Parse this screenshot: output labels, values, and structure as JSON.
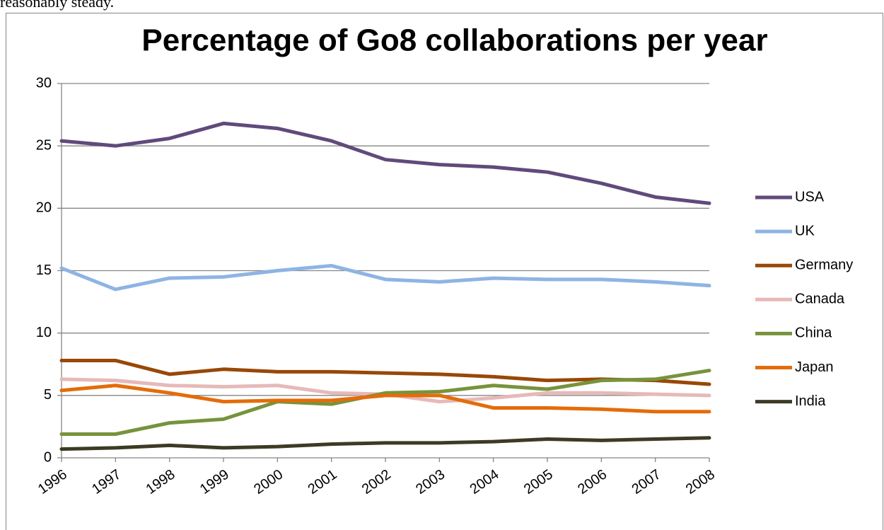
{
  "document": {
    "text": "reasonably steady."
  },
  "chart_data": {
    "type": "line",
    "title": "Percentage of Go8 collaborations per year",
    "categories": [
      "1996",
      "1997",
      "1998",
      "1999",
      "2000",
      "2001",
      "2002",
      "2003",
      "2004",
      "2005",
      "2006",
      "2007",
      "2008"
    ],
    "series": [
      {
        "name": "USA",
        "color": "#604a7b",
        "values": [
          25.4,
          25.0,
          25.6,
          26.8,
          26.4,
          25.4,
          23.9,
          23.5,
          23.3,
          22.9,
          22.0,
          20.9,
          20.4
        ]
      },
      {
        "name": "UK",
        "color": "#8eb4e3",
        "values": [
          15.2,
          13.5,
          14.4,
          14.5,
          15.0,
          15.4,
          14.3,
          14.1,
          14.4,
          14.3,
          14.3,
          14.1,
          13.8
        ]
      },
      {
        "name": "Germany",
        "color": "#984807",
        "values": [
          7.8,
          7.8,
          6.7,
          7.1,
          6.9,
          6.9,
          6.8,
          6.7,
          6.5,
          6.2,
          6.3,
          6.2,
          5.9
        ]
      },
      {
        "name": "Canada",
        "color": "#e6b9b8",
        "values": [
          6.3,
          6.2,
          5.8,
          5.7,
          5.8,
          5.2,
          5.1,
          4.5,
          4.8,
          5.2,
          5.2,
          5.1,
          5.0
        ]
      },
      {
        "name": "China",
        "color": "#77933c",
        "values": [
          1.9,
          1.9,
          2.8,
          3.1,
          4.5,
          4.3,
          5.2,
          5.3,
          5.8,
          5.5,
          6.2,
          6.3,
          7.0
        ]
      },
      {
        "name": "Japan",
        "color": "#e46c0a",
        "values": [
          5.4,
          5.8,
          5.2,
          4.5,
          4.6,
          4.6,
          5.0,
          5.0,
          4.0,
          4.0,
          3.9,
          3.7,
          3.7
        ]
      },
      {
        "name": "India",
        "color": "#3d3a25",
        "values": [
          0.7,
          0.8,
          1.0,
          0.8,
          0.9,
          1.1,
          1.2,
          1.2,
          1.3,
          1.5,
          1.4,
          1.5,
          1.6
        ]
      }
    ],
    "ylim": [
      0,
      30
    ],
    "yticks": [
      0,
      5,
      10,
      15,
      20,
      25,
      30
    ],
    "grid": true,
    "legend": "right"
  }
}
